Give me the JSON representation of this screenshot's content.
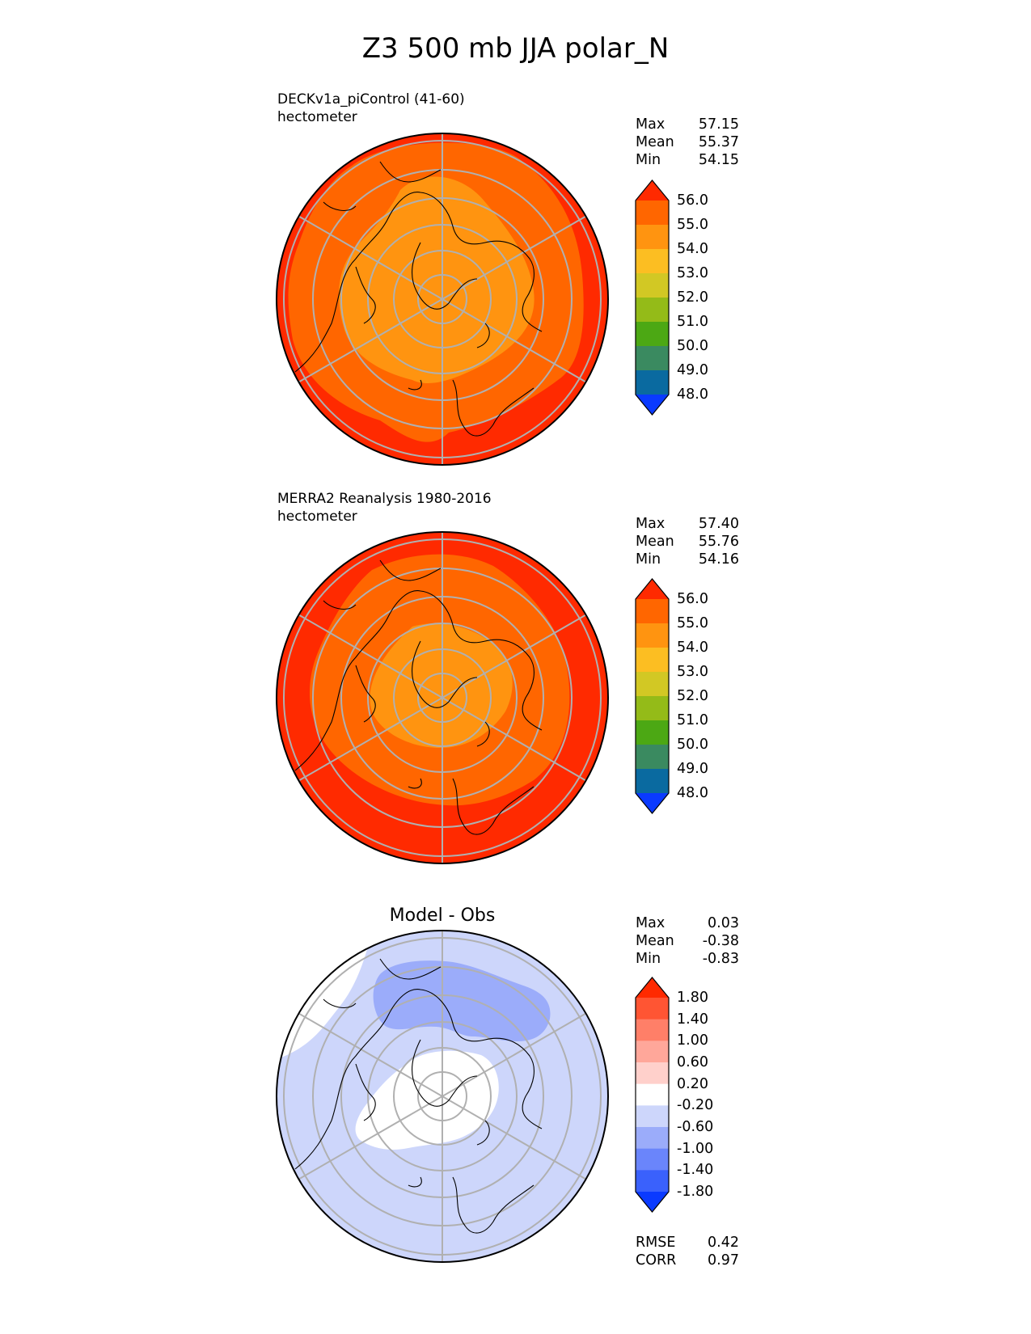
{
  "title": "Z3 500 mb JJA polar_N",
  "panels": [
    {
      "id": "model",
      "label_line1": "DECKv1a_piControl (41-60)",
      "label_line2": "hectometer",
      "stats": [
        {
          "label": "Max",
          "value": "57.15"
        },
        {
          "label": "Mean",
          "value": "55.37"
        },
        {
          "label": "Min",
          "value": "54.15"
        }
      ]
    },
    {
      "id": "obs",
      "label_line1": "MERRA2 Reanalysis 1980-2016",
      "label_line2": "hectometer",
      "stats": [
        {
          "label": "Max",
          "value": "57.40"
        },
        {
          "label": "Mean",
          "value": "55.76"
        },
        {
          "label": "Min",
          "value": "54.16"
        }
      ]
    },
    {
      "id": "diff",
      "subtitle": "Model - Obs",
      "stats": [
        {
          "label": "Max",
          "value": "0.03"
        },
        {
          "label": "Mean",
          "value": "-0.38"
        },
        {
          "label": "Min",
          "value": "-0.83"
        }
      ],
      "metrics": [
        {
          "label": "RMSE",
          "value": "0.42"
        },
        {
          "label": "CORR",
          "value": "0.97"
        }
      ]
    }
  ],
  "colorbar_field": {
    "ticks": [
      "56.0",
      "55.0",
      "54.0",
      "53.0",
      "52.0",
      "51.0",
      "50.0",
      "49.0",
      "48.0"
    ],
    "colors": [
      "#ff2a00",
      "#ff6600",
      "#ff9410",
      "#fcbe22",
      "#d2c824",
      "#94bb18",
      "#4ca814",
      "#3a8a60",
      "#0a6aa0",
      "#0a3aff"
    ]
  },
  "colorbar_diff": {
    "ticks": [
      "1.80",
      "1.40",
      "1.00",
      "0.60",
      "0.20",
      "-0.20",
      "-0.60",
      "-1.00",
      "-1.40",
      "-1.80"
    ],
    "colors": [
      "#ff2a00",
      "#ff5533",
      "#ff7f68",
      "#ffa79a",
      "#ffd0cb",
      "#ffffff",
      "#cdd6fb",
      "#9bacfa",
      "#6a85fb",
      "#3a61fc",
      "#0a3aff"
    ]
  },
  "map_legend": {
    "field_bands": [
      {
        "level": "56.0",
        "color": "#ff2a00"
      },
      {
        "level": "55.0",
        "color": "#ff6600"
      },
      {
        "level": "54.0",
        "color": "#ff9410"
      }
    ],
    "diff_bands": [
      {
        "level": "-0.20",
        "color": "#cdd6fb"
      },
      {
        "level": "-0.60",
        "color": "#9bacfa"
      },
      {
        "level": "0.20",
        "color": "#ffffff"
      }
    ]
  },
  "chart_data": [
    {
      "type": "heatmap",
      "title": "DECKv1a_piControl (41-60)",
      "units": "hectometer",
      "projection": "north polar stereographic",
      "stats": {
        "max": 57.15,
        "mean": 55.37,
        "min": 54.15
      },
      "levels": [
        48,
        49,
        50,
        51,
        52,
        53,
        54,
        55,
        56
      ]
    },
    {
      "type": "heatmap",
      "title": "MERRA2 Reanalysis 1980-2016",
      "units": "hectometer",
      "projection": "north polar stereographic",
      "stats": {
        "max": 57.4,
        "mean": 55.76,
        "min": 54.16
      },
      "levels": [
        48,
        49,
        50,
        51,
        52,
        53,
        54,
        55,
        56
      ]
    },
    {
      "type": "heatmap",
      "title": "Model - Obs",
      "projection": "north polar stereographic",
      "stats": {
        "max": 0.03,
        "mean": -0.38,
        "min": -0.83,
        "rmse": 0.42,
        "corr": 0.97
      },
      "levels": [
        -1.8,
        -1.4,
        -1.0,
        -0.6,
        -0.2,
        0.2,
        0.6,
        1.0,
        1.4,
        1.8
      ]
    }
  ]
}
